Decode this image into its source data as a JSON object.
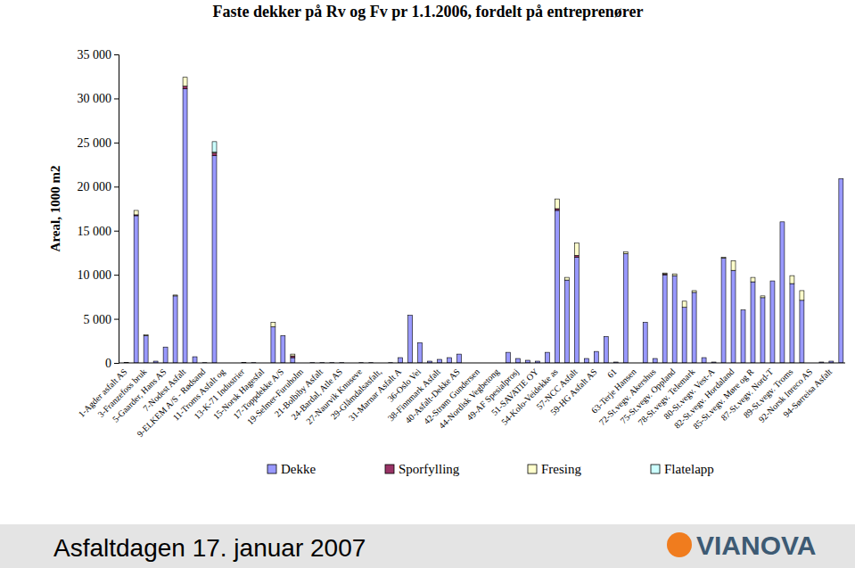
{
  "chart_data": {
    "type": "bar",
    "stacked": true,
    "title": "Faste dekker på Rv og Fv pr 1.1.2006, fordelt på entreprenører",
    "y_label": "Areal, 1000 m2",
    "categories": [
      "1-Agder asfalt AS",
      null,
      "3-Franzefoss bruk",
      null,
      "5-Gaarder, Hans AS",
      null,
      "7-Nodest Asfalt",
      null,
      "9-ELKEM A/S - Rødsand",
      null,
      "11-Troms Asfalt og",
      null,
      "13-K-71 Industrier",
      null,
      "15-Norsk Hagesfal",
      null,
      "17-Toppdekke A/S",
      null,
      "19-Selmer-Furuholm",
      null,
      "21-Bolbiby Asfalt",
      null,
      "24-Bardal, Atle AS",
      null,
      "27-Naurvik Knuseve",
      null,
      "29-Glåmdalsasfalt,",
      null,
      "31-Marnar Asfalt A",
      null,
      "36-Oslo Vei",
      null,
      "38-Finnmark Asfalt",
      null,
      "40-Asfalt-Dekke AS",
      null,
      "42-Strøm Gundersen",
      null,
      "44-Nordisk Vegbetong",
      null,
      "49-AF Spesialprosj",
      null,
      "51-SAVATIE OY",
      null,
      "54-Kolo-Veidekke as",
      null,
      "57-NCC Asfalt",
      null,
      "59-HG Asfalt AS",
      null,
      "61",
      null,
      "63-Terje Hansen",
      null,
      "72-St.vegv. Akershus",
      null,
      "75-St.vegv. Oppland",
      null,
      "78-St.vegv. Telemark",
      null,
      "80-St.vegv. Vest-A",
      null,
      "82-St.vegv. Hordaland",
      null,
      "85-St.vegv. Møre og R",
      null,
      "87-St.vegv. Nord-T",
      null,
      "89-St.vegv. Troms",
      null,
      "92-Norsk Inreco AS",
      null,
      "94-Sørreisa Asfalt",
      null
    ],
    "series": [
      {
        "name": "Dekke",
        "color": "#9999ff",
        "values": [
          50,
          16700,
          3100,
          200,
          1800,
          7600,
          31100,
          700,
          30,
          23500,
          0,
          0,
          50,
          30,
          0,
          4100,
          3100,
          600,
          0,
          30,
          30,
          30,
          30,
          0,
          30,
          30,
          0,
          30,
          600,
          5400,
          2300,
          200,
          400,
          600,
          1000,
          0,
          0,
          0,
          0,
          1200,
          500,
          300,
          200,
          1200,
          17300,
          9400,
          12000,
          500,
          1300,
          3000,
          100,
          12400,
          0,
          4600,
          500,
          10000,
          9900,
          6300,
          8000,
          600,
          100,
          11900,
          10500,
          6000,
          9200,
          7400,
          9300,
          16000,
          9000,
          7100,
          0,
          100,
          200,
          20900
        ]
      },
      {
        "name": "Sporfylling",
        "color": "#993366",
        "values": [
          0,
          100,
          0,
          0,
          0,
          0,
          300,
          0,
          0,
          300,
          0,
          0,
          0,
          0,
          0,
          0,
          0,
          200,
          0,
          0,
          0,
          0,
          0,
          0,
          0,
          0,
          0,
          0,
          0,
          0,
          0,
          0,
          0,
          0,
          0,
          0,
          0,
          0,
          0,
          0,
          0,
          0,
          0,
          0,
          200,
          0,
          200,
          0,
          0,
          0,
          0,
          0,
          0,
          0,
          0,
          100,
          0,
          0,
          0,
          0,
          0,
          0,
          0,
          0,
          0,
          0,
          0,
          0,
          0,
          0,
          0,
          0,
          0,
          0
        ]
      },
      {
        "name": "Fresing",
        "color": "#ffffcc",
        "values": [
          0,
          500,
          100,
          0,
          0,
          100,
          1000,
          0,
          0,
          100,
          0,
          0,
          0,
          0,
          0,
          500,
          0,
          200,
          0,
          0,
          0,
          0,
          0,
          0,
          0,
          0,
          0,
          0,
          0,
          0,
          0,
          0,
          0,
          0,
          0,
          0,
          0,
          0,
          0,
          0,
          0,
          0,
          0,
          0,
          1100,
          300,
          1400,
          0,
          0,
          0,
          0,
          200,
          0,
          0,
          0,
          100,
          200,
          700,
          200,
          0,
          0,
          100,
          1100,
          0,
          500,
          200,
          0,
          0,
          900,
          1100,
          0,
          0,
          0,
          0
        ]
      },
      {
        "name": "Flatelapp",
        "color": "#ccffff",
        "values": [
          0,
          0,
          0,
          0,
          0,
          0,
          0,
          0,
          0,
          1200,
          0,
          0,
          0,
          0,
          0,
          0,
          0,
          0,
          0,
          0,
          0,
          0,
          0,
          0,
          0,
          0,
          0,
          0,
          0,
          0,
          0,
          0,
          0,
          0,
          0,
          0,
          0,
          0,
          0,
          0,
          0,
          0,
          0,
          0,
          0,
          0,
          0,
          0,
          0,
          0,
          0,
          0,
          0,
          0,
          0,
          0,
          0,
          0,
          0,
          0,
          0,
          0,
          0,
          0,
          0,
          0,
          0,
          0,
          0,
          0,
          0,
          0,
          0,
          0
        ]
      }
    ],
    "ylim": [
      0,
      35000
    ],
    "yticks": [
      0,
      {
        "value": 5000,
        "label": "5 000"
      },
      {
        "value": 10000,
        "label": "10 000"
      },
      {
        "value": 15000,
        "label": "15 000"
      },
      {
        "value": 20000,
        "label": "20 000"
      },
      {
        "value": 25000,
        "label": "25 000"
      },
      {
        "value": 30000,
        "label": "30 000"
      },
      {
        "value": 35000,
        "label": "35 000"
      }
    ],
    "grid": false,
    "legend": "bottom"
  },
  "footer": {
    "text": "Asfaltdagen 17. januar 2007",
    "logo": "VIANOVA"
  }
}
